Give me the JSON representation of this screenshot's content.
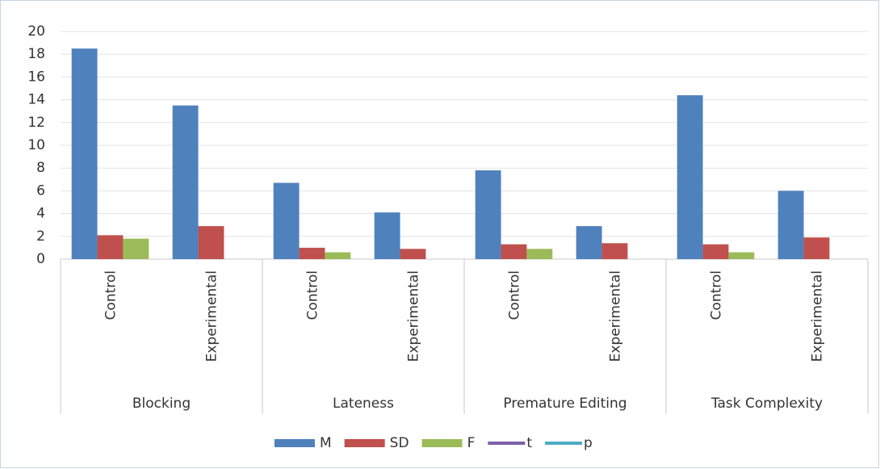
{
  "chart_data": {
    "type": "bar",
    "groups": [
      "Blocking",
      "Lateness",
      "Premature Editing",
      "Task Complexity"
    ],
    "categories": [
      "Control",
      "Experimental",
      "Control",
      "Experimental",
      "Control",
      "Experimental",
      "Control",
      "Experimental"
    ],
    "series": [
      {
        "name": "M",
        "color": "#4f81bd",
        "type": "bar",
        "values": [
          18.5,
          13.5,
          6.7,
          4.1,
          7.8,
          2.9,
          14.4,
          6.0
        ]
      },
      {
        "name": "SD",
        "color": "#c0504d",
        "type": "bar",
        "values": [
          2.1,
          2.9,
          1.0,
          0.9,
          1.3,
          1.4,
          1.3,
          1.9
        ]
      },
      {
        "name": "F",
        "color": "#9bbb59",
        "type": "bar",
        "values": [
          1.8,
          null,
          0.6,
          null,
          0.9,
          null,
          0.6,
          null
        ]
      },
      {
        "name": "t",
        "color": "#7f5fa8",
        "type": "line",
        "values": [
          null,
          null,
          null,
          null,
          null,
          null,
          null,
          null
        ]
      },
      {
        "name": "p",
        "color": "#4bacc6",
        "type": "line",
        "values": [
          null,
          null,
          null,
          null,
          null,
          null,
          null,
          null
        ]
      }
    ],
    "ylim": [
      0,
      20
    ],
    "yticks": [
      0,
      2,
      4,
      6,
      8,
      10,
      12,
      14,
      16,
      18,
      20
    ],
    "grid": true,
    "legend": "bottom"
  }
}
